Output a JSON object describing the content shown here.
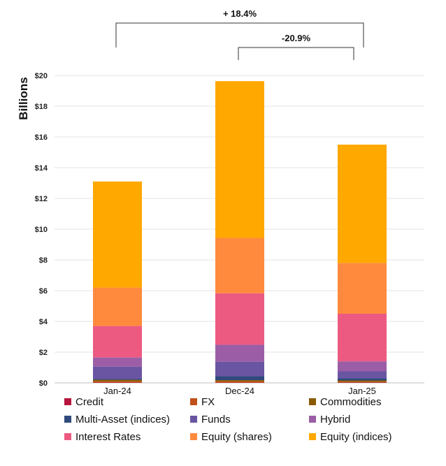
{
  "chart_data": {
    "type": "bar",
    "stacked": true,
    "ylabel": "Billions",
    "ylim": [
      0,
      20
    ],
    "yticks": [
      "$0",
      "$2",
      "$4",
      "$6",
      "$8",
      "$10",
      "$12",
      "$14",
      "$16",
      "$18",
      "$20"
    ],
    "ytick_values": [
      0,
      2,
      4,
      6,
      8,
      10,
      12,
      14,
      16,
      18,
      20
    ],
    "grid": true,
    "legend_position": "bottom",
    "categories": [
      "Jan-24",
      "Dec-24",
      "Jan-25"
    ],
    "series": [
      {
        "name": "Credit",
        "color": "#b5153c",
        "values": [
          0.02,
          0.02,
          0.02
        ]
      },
      {
        "name": "FX",
        "color": "#c0501b",
        "values": [
          0.08,
          0.08,
          0.06
        ]
      },
      {
        "name": "Commodities",
        "color": "#8a5a00",
        "values": [
          0.1,
          0.08,
          0.08
        ]
      },
      {
        "name": "Multi-Asset (indices)",
        "color": "#2f4a7c",
        "values": [
          0.05,
          0.25,
          0.14
        ]
      },
      {
        "name": "Funds",
        "color": "#6a55a3",
        "values": [
          0.8,
          0.95,
          0.45
        ]
      },
      {
        "name": "Hybrid",
        "color": "#9b5ea6",
        "values": [
          0.6,
          1.1,
          0.65
        ]
      },
      {
        "name": "Interest Rates",
        "color": "#ec5a82",
        "values": [
          2.05,
          3.35,
          3.1
        ]
      },
      {
        "name": "Equity (shares)",
        "color": "#ff8a3d",
        "values": [
          2.5,
          3.6,
          3.3
        ]
      },
      {
        "name": "Equity (indices)",
        "color": "#ffa800",
        "values": [
          6.9,
          10.2,
          7.7
        ]
      }
    ],
    "totals": [
      13.1,
      19.6,
      15.5
    ],
    "annotations": [
      {
        "text": "+ 18.4%",
        "from": "Jan-24",
        "to": "Jan-25"
      },
      {
        "text": "-20.9%",
        "from": "Dec-24",
        "to": "Jan-25"
      }
    ]
  }
}
